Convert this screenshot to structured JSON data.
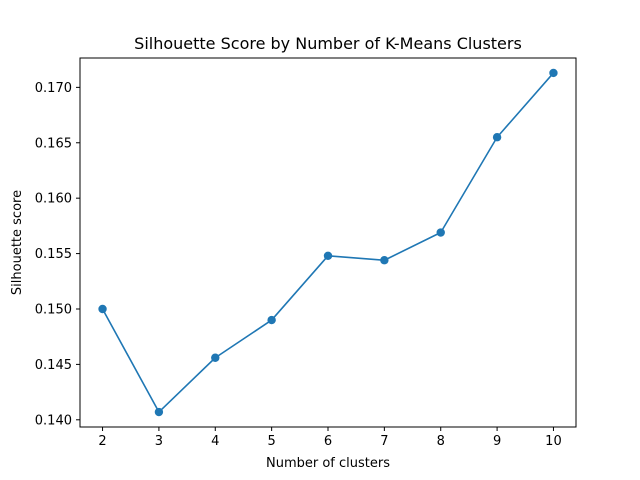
{
  "chart_data": {
    "type": "line",
    "title": "Silhouette Score by Number of K-Means Clusters",
    "xlabel": "Number of clusters",
    "ylabel": "Silhouette score",
    "x": [
      2,
      3,
      4,
      5,
      6,
      7,
      8,
      9,
      10
    ],
    "series": [
      {
        "values": [
          0.15,
          0.1407,
          0.1456,
          0.149,
          0.1548,
          0.1544,
          0.1569,
          0.1655,
          0.1713
        ],
        "color": "#1f77b4",
        "marker": "circle"
      }
    ],
    "xlim": [
      1.6,
      10.4
    ],
    "ylim": [
      0.13935,
      0.17265
    ],
    "xticks": [
      "2",
      "3",
      "4",
      "5",
      "6",
      "7",
      "8",
      "9",
      "10"
    ],
    "xtick_values": [
      2,
      3,
      4,
      5,
      6,
      7,
      8,
      9,
      10
    ],
    "yticks": [
      "0.140",
      "0.145",
      "0.150",
      "0.155",
      "0.160",
      "0.165",
      "0.170"
    ],
    "ytick_values": [
      0.14,
      0.145,
      0.15,
      0.155,
      0.16,
      0.165,
      0.17
    ],
    "grid": false,
    "legend": "none"
  }
}
